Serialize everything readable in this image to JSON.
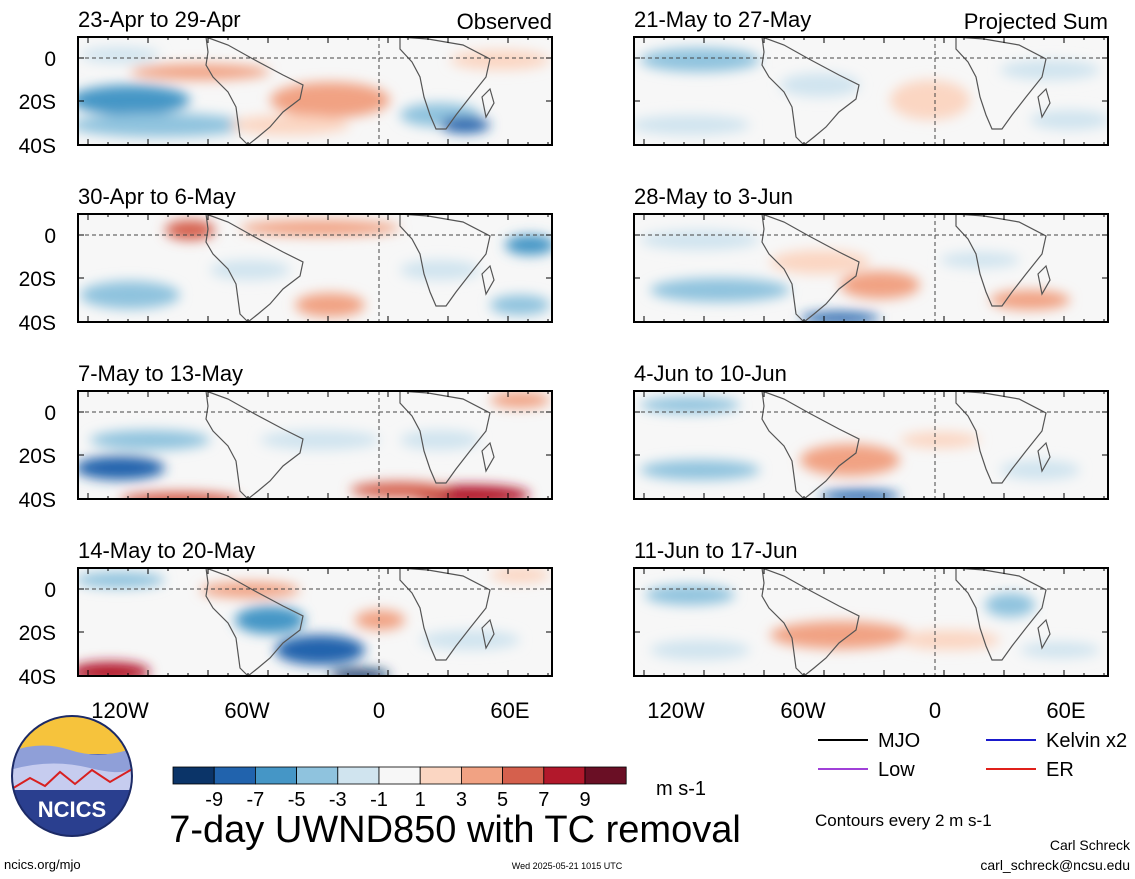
{
  "panels": {
    "left": [
      {
        "label": "23-Apr to 29-Apr",
        "tag": "Observed"
      },
      {
        "label": "30-Apr to 6-May",
        "tag": ""
      },
      {
        "label": "7-May to 13-May",
        "tag": ""
      },
      {
        "label": "14-May to 20-May",
        "tag": ""
      }
    ],
    "right": [
      {
        "label": "21-May to 27-May",
        "tag": "Projected Sum"
      },
      {
        "label": "28-May to 3-Jun",
        "tag": ""
      },
      {
        "label": "4-Jun to 10-Jun",
        "tag": ""
      },
      {
        "label": "11-Jun to 17-Jun",
        "tag": ""
      }
    ]
  },
  "axes": {
    "lat_ticks": [
      "0",
      "20S",
      "40S"
    ],
    "lon_ticks": [
      "120W",
      "60W",
      "0",
      "60E"
    ]
  },
  "legend": {
    "items": [
      {
        "name": "MJO",
        "color": "#000000"
      },
      {
        "name": "Kelvin x2",
        "color": "#1a1acc"
      },
      {
        "name": "Low",
        "color": "#a040d8"
      },
      {
        "name": "ER",
        "color": "#e0201a"
      }
    ],
    "contours_note": "Contours every 2 m s-1"
  },
  "colorbar": {
    "labels": [
      "-9",
      "-7",
      "-5",
      "-3",
      "-1",
      "1",
      "3",
      "5",
      "7",
      "9"
    ],
    "colors": [
      "#0b3468",
      "#2163ad",
      "#4596c6",
      "#8fc3de",
      "#d0e4ef",
      "#f7f7f7",
      "#fbd6c2",
      "#f1a283",
      "#d5604d",
      "#b2182b",
      "#6a0f25"
    ],
    "units": "m s-1"
  },
  "footer": {
    "title": "7-day UWND850 with TC removal",
    "logo_text": "NCICS",
    "site": "ncics.org/mjo",
    "timestamp": "Wed 2025-05-21 1015 UTC",
    "author": "Carl Schreck",
    "email": "carl_schreck@ncsu.edu"
  }
}
